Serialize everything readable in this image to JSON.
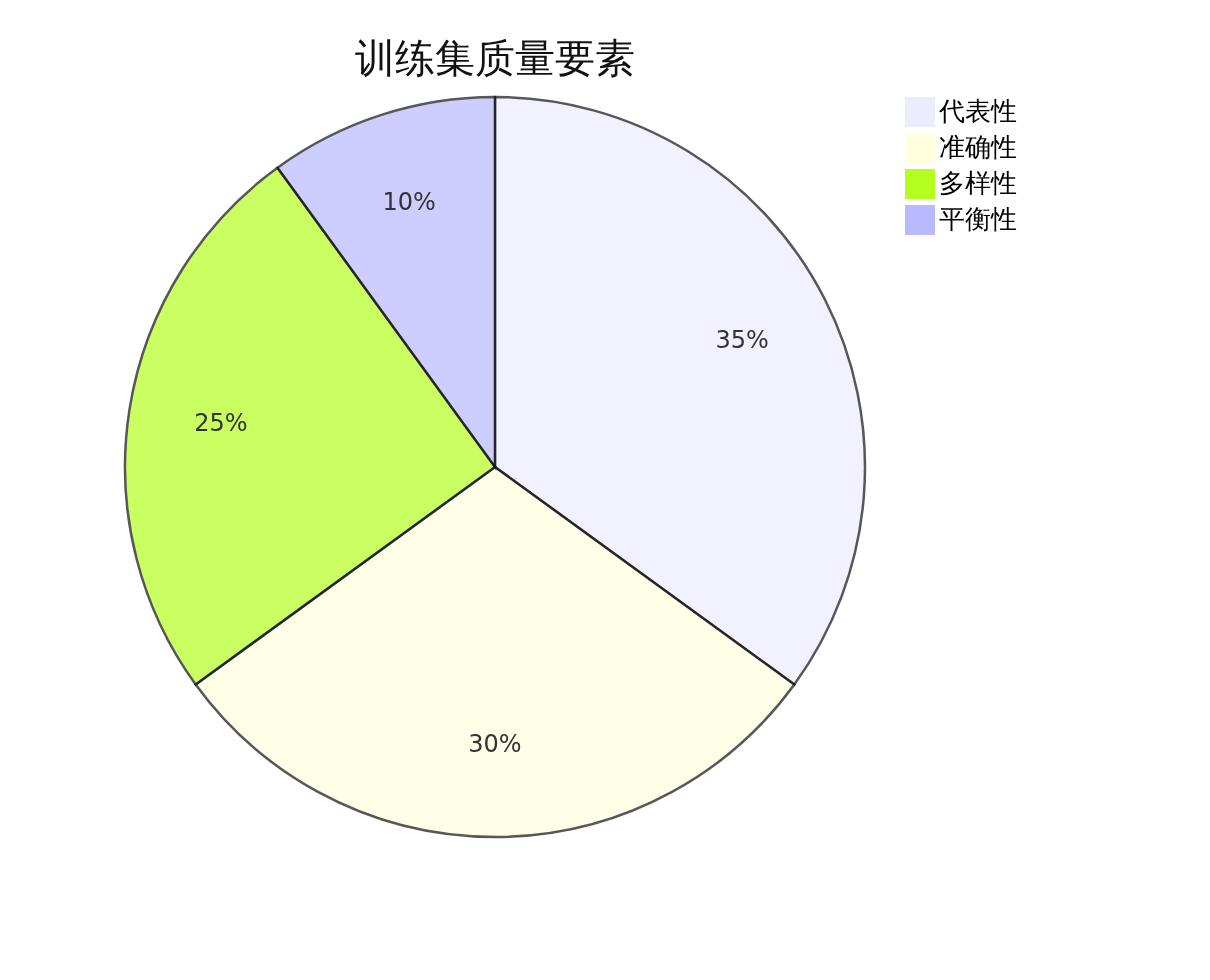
{
  "chart_data": {
    "type": "pie",
    "title": "训练集质量要素",
    "categories": [
      "代表性",
      "准确性",
      "多样性",
      "平衡性"
    ],
    "values": [
      35,
      30,
      25,
      10
    ],
    "value_labels": [
      "35%",
      "30%",
      "25%",
      "10%"
    ],
    "colors": [
      "#ececff",
      "#ffffde",
      "#b5ff20",
      "#b9b9ff"
    ],
    "legend": "right"
  }
}
